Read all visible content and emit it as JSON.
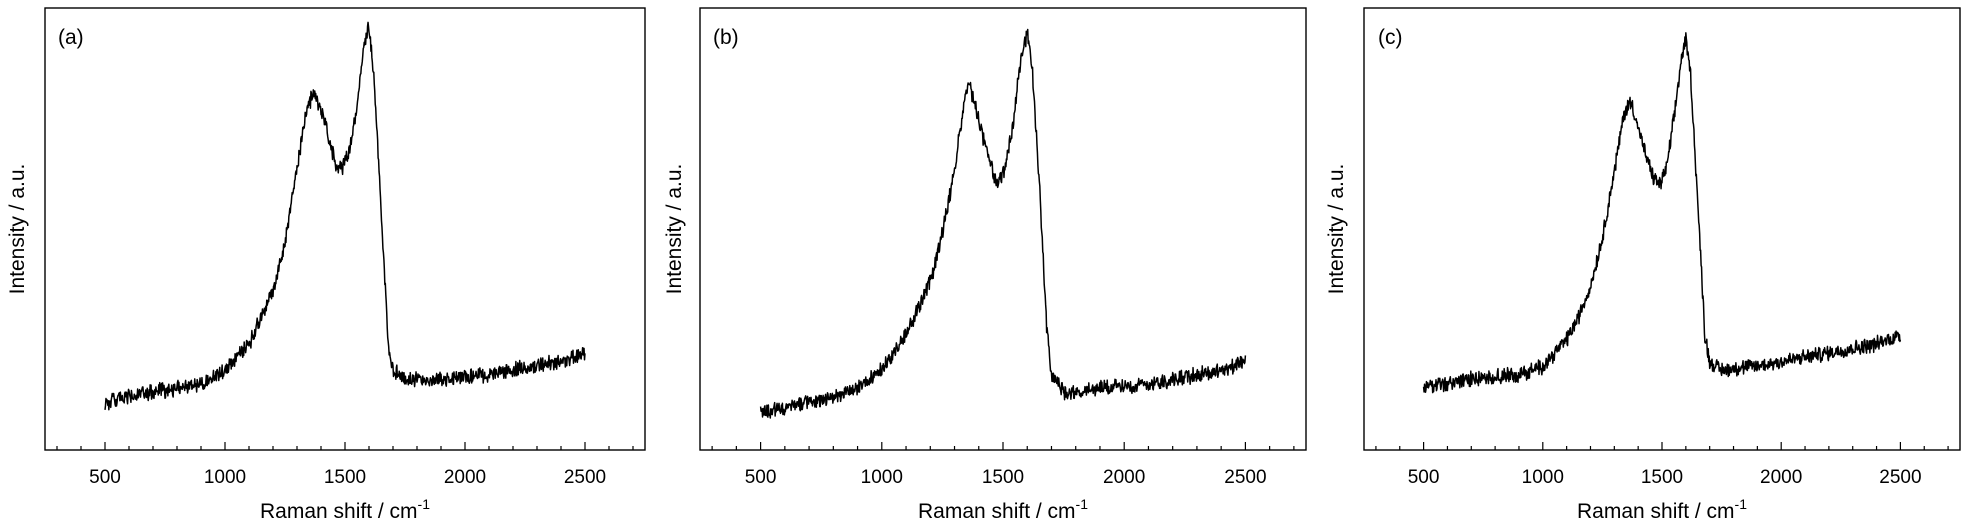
{
  "chart_data": [
    {
      "type": "line",
      "panel_label": "(a)",
      "xlabel": "Raman shift / cm",
      "xlabel_sup": "-1",
      "ylabel": "Intensity / a.u.",
      "xlim": [
        250,
        2750
      ],
      "ylim": [
        0,
        1
      ],
      "xticks": [
        500,
        1000,
        1500,
        2000,
        2500
      ],
      "y_ticks_labeled": false,
      "x_range": [
        500,
        2500
      ],
      "series": [
        {
          "color": "#000000",
          "x": [
            500,
            600,
            700,
            800,
            900,
            1000,
            1100,
            1200,
            1250,
            1300,
            1340,
            1370,
            1400,
            1430,
            1460,
            1490,
            1520,
            1550,
            1580,
            1600,
            1620,
            1650,
            1680,
            1700,
            1750,
            1800,
            1900,
            2000,
            2100,
            2200,
            2300,
            2400,
            2500
          ],
          "y": [
            0.107,
            0.12,
            0.13,
            0.14,
            0.15,
            0.18,
            0.24,
            0.36,
            0.47,
            0.64,
            0.77,
            0.81,
            0.77,
            0.71,
            0.65,
            0.64,
            0.68,
            0.78,
            0.92,
            0.96,
            0.85,
            0.55,
            0.24,
            0.18,
            0.16,
            0.16,
            0.16,
            0.165,
            0.17,
            0.18,
            0.19,
            0.2,
            0.22
          ]
        }
      ]
    },
    {
      "type": "line",
      "panel_label": "(b)",
      "xlabel": "Raman shift / cm",
      "xlabel_sup": "-1",
      "ylabel": "Intensity / a.u.",
      "xlim": [
        250,
        2750
      ],
      "ylim": [
        0,
        1
      ],
      "xticks": [
        500,
        1000,
        1500,
        2000,
        2500
      ],
      "y_ticks_labeled": false,
      "x_range": [
        500,
        2500
      ],
      "series": [
        {
          "color": "#000000",
          "x": [
            500,
            600,
            700,
            800,
            900,
            1000,
            1100,
            1200,
            1250,
            1300,
            1340,
            1360,
            1390,
            1420,
            1450,
            1480,
            1510,
            1540,
            1570,
            1600,
            1620,
            1650,
            1680,
            1700,
            1750,
            1800,
            1900,
            2000,
            2100,
            2200,
            2300,
            2400,
            2500
          ],
          "y": [
            0.085,
            0.095,
            0.11,
            0.12,
            0.14,
            0.18,
            0.26,
            0.38,
            0.49,
            0.63,
            0.79,
            0.83,
            0.77,
            0.7,
            0.64,
            0.6,
            0.64,
            0.73,
            0.87,
            0.94,
            0.87,
            0.6,
            0.28,
            0.17,
            0.13,
            0.13,
            0.14,
            0.145,
            0.15,
            0.16,
            0.17,
            0.18,
            0.2
          ]
        }
      ]
    },
    {
      "type": "line",
      "panel_label": "(c)",
      "xlabel": "Raman shift / cm",
      "xlabel_sup": "-1",
      "ylabel": "Intensity / a.u.",
      "xlim": [
        250,
        2750
      ],
      "ylim": [
        0,
        1
      ],
      "xticks": [
        500,
        1000,
        1500,
        2000,
        2500
      ],
      "y_ticks_labeled": false,
      "x_range": [
        500,
        2500
      ],
      "series": [
        {
          "color": "#000000",
          "x": [
            500,
            600,
            700,
            800,
            900,
            1000,
            1100,
            1150,
            1200,
            1250,
            1300,
            1340,
            1370,
            1400,
            1430,
            1460,
            1490,
            1520,
            1550,
            1580,
            1600,
            1620,
            1650,
            1680,
            1700,
            1750,
            1800,
            1900,
            2000,
            2100,
            2200,
            2300,
            2400,
            2500
          ],
          "y": [
            0.14,
            0.15,
            0.16,
            0.165,
            0.17,
            0.19,
            0.25,
            0.3,
            0.37,
            0.48,
            0.63,
            0.76,
            0.79,
            0.73,
            0.67,
            0.62,
            0.6,
            0.64,
            0.75,
            0.88,
            0.93,
            0.85,
            0.56,
            0.26,
            0.2,
            0.18,
            0.185,
            0.19,
            0.2,
            0.21,
            0.22,
            0.23,
            0.24,
            0.26
          ]
        }
      ]
    }
  ]
}
